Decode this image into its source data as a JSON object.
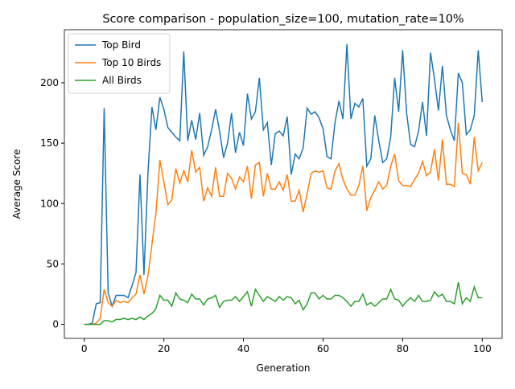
{
  "chart_data": {
    "type": "line",
    "title": "Score comparison - population_size=100, mutation_rate=10%",
    "xlabel": "Generation",
    "ylabel": "Average Score",
    "x": [
      0,
      1,
      2,
      3,
      4,
      5,
      6,
      7,
      8,
      9,
      10,
      11,
      12,
      13,
      14,
      15,
      16,
      17,
      18,
      19,
      20,
      21,
      22,
      23,
      24,
      25,
      26,
      27,
      28,
      29,
      30,
      31,
      32,
      33,
      34,
      35,
      36,
      37,
      38,
      39,
      40,
      41,
      42,
      43,
      44,
      45,
      46,
      47,
      48,
      49,
      50,
      51,
      52,
      53,
      54,
      55,
      56,
      57,
      58,
      59,
      60,
      61,
      62,
      63,
      64,
      65,
      66,
      67,
      68,
      69,
      70,
      71,
      72,
      73,
      74,
      75,
      76,
      77,
      78,
      79,
      80,
      81,
      82,
      83,
      84,
      85,
      86,
      87,
      88,
      89,
      90,
      91,
      92,
      93,
      94,
      95,
      96,
      97,
      98,
      99,
      100
    ],
    "series": [
      {
        "name": "Top Bird",
        "color": "#1f77b4",
        "values": [
          0,
          0,
          1,
          17,
          18,
          179,
          26,
          15,
          24,
          24,
          24,
          22,
          32,
          43,
          124,
          41,
          125,
          180,
          161,
          188,
          178,
          163,
          159,
          155,
          152,
          226,
          152,
          169,
          153,
          175,
          140,
          147,
          161,
          178,
          160,
          138,
          150,
          175,
          142,
          159,
          148,
          191,
          170,
          176,
          204,
          161,
          167,
          132,
          158,
          160,
          156,
          172,
          124,
          141,
          137,
          146,
          179,
          174,
          176,
          171,
          162,
          139,
          137,
          167,
          185,
          170,
          232,
          170,
          183,
          180,
          187,
          131,
          137,
          173,
          152,
          134,
          137,
          155,
          204,
          176,
          227,
          175,
          149,
          147,
          160,
          184,
          156,
          225,
          203,
          177,
          214,
          173,
          161,
          152,
          208,
          200,
          157,
          161,
          173,
          227,
          184
        ]
      },
      {
        "name": "Top 10 Birds",
        "color": "#ff7f0e",
        "values": [
          0,
          0,
          0,
          1,
          5,
          29,
          18,
          15,
          20,
          18,
          19,
          18,
          22,
          25,
          41,
          25,
          40,
          66,
          92,
          136,
          118,
          99,
          103,
          129,
          117,
          127,
          118,
          144,
          126,
          130,
          102,
          113,
          106,
          130,
          106,
          106,
          125,
          121,
          112,
          122,
          118,
          131,
          104,
          132,
          134,
          106,
          125,
          112,
          112,
          118,
          111,
          124,
          102,
          102,
          111,
          93,
          108,
          125,
          127,
          126,
          127,
          113,
          112,
          127,
          133,
          120,
          112,
          107,
          107,
          115,
          131,
          94,
          105,
          111,
          118,
          112,
          115,
          131,
          141,
          119,
          115,
          115,
          114,
          120,
          125,
          135,
          123,
          126,
          145,
          119,
          153,
          116,
          116,
          114,
          167,
          125,
          124,
          116,
          155,
          127,
          134
        ]
      },
      {
        "name": "All Birds",
        "color": "#2ca02c",
        "values": [
          0,
          0,
          0,
          0,
          0,
          3,
          3,
          2,
          4,
          4,
          5,
          4,
          5,
          4,
          6,
          4,
          7,
          9,
          13,
          24,
          20,
          20,
          15,
          26,
          21,
          20,
          18,
          25,
          21,
          21,
          16,
          21,
          22,
          24,
          14,
          19,
          20,
          20,
          23,
          19,
          23,
          27,
          15,
          29,
          24,
          19,
          23,
          21,
          19,
          23,
          20,
          23,
          22,
          17,
          20,
          12,
          17,
          26,
          26,
          21,
          24,
          21,
          21,
          24,
          24,
          22,
          19,
          15,
          19,
          19,
          25,
          16,
          18,
          15,
          18,
          21,
          21,
          29,
          21,
          20,
          15,
          19,
          22,
          19,
          24,
          19,
          19,
          20,
          27,
          23,
          25,
          19,
          19,
          17,
          35,
          17,
          22,
          19,
          31,
          22,
          22
        ]
      }
    ],
    "xlim": [
      -5,
      105
    ],
    "ylim": [
      -11.6,
      243.9
    ],
    "xticks": [
      0,
      20,
      40,
      60,
      80,
      100
    ],
    "yticks": [
      0,
      50,
      100,
      150,
      200
    ],
    "legend": "upper left"
  }
}
